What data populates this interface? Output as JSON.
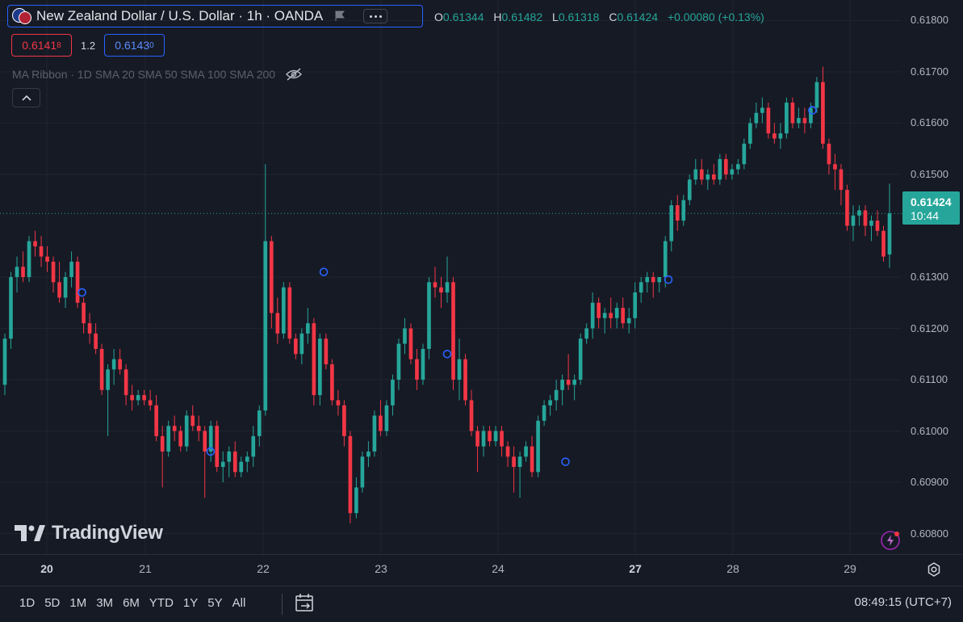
{
  "header": {
    "symbol_title": "New Zealand Dollar / U.S. Dollar · 1h · OANDA",
    "ohlc": {
      "o_label": "O",
      "o": "0.61344",
      "h_label": "H",
      "h": "0.61482",
      "l_label": "L",
      "l": "0.61318",
      "c_label": "C",
      "c": "0.61424",
      "change": "+0.00080 (+0.13%)"
    },
    "bid": {
      "main": "0.6141",
      "small": "8"
    },
    "spread": "1.2",
    "ask": {
      "main": "0.6143",
      "small": "0"
    },
    "indicator": "MA Ribbon · 1D SMA 20 SMA 50 SMA 100 SMA 200"
  },
  "logo_text": "TradingView",
  "price_scale": {
    "labels": [
      "0.61800",
      "0.61700",
      "0.61600",
      "0.61500",
      "0.61300",
      "0.61200",
      "0.61100",
      "0.61000",
      "0.60900",
      "0.60800"
    ],
    "last_price": "0.61424",
    "countdown": "10:44"
  },
  "time_axis": {
    "labels": [
      {
        "text": "20",
        "bold": true
      },
      {
        "text": "21",
        "bold": false
      },
      {
        "text": "22",
        "bold": false
      },
      {
        "text": "23",
        "bold": false
      },
      {
        "text": "24",
        "bold": false
      },
      {
        "text": "27",
        "bold": true
      },
      {
        "text": "28",
        "bold": false
      },
      {
        "text": "29",
        "bold": false
      }
    ]
  },
  "bottom_bar": {
    "ranges": [
      "1D",
      "5D",
      "1M",
      "3M",
      "6M",
      "YTD",
      "1Y",
      "5Y",
      "All"
    ],
    "clock": "08:49:15 (UTC+7)"
  },
  "colors": {
    "up": "#26a69a",
    "down": "#f23645",
    "background": "#161a25",
    "grid": "#202430",
    "marker": "#2962ff"
  },
  "chart_data": {
    "type": "candlestick",
    "symbol": "NZD/USD",
    "interval": "1h",
    "ylim": [
      0.6076,
      0.6184
    ],
    "last": 0.61424,
    "candles": [
      [
        0.6109,
        0.6119,
        0.6107,
        0.6118
      ],
      [
        0.6118,
        0.6131,
        0.6116,
        0.613
      ],
      [
        0.613,
        0.6134,
        0.6127,
        0.6132
      ],
      [
        0.6132,
        0.6135,
        0.6129,
        0.613
      ],
      [
        0.613,
        0.6138,
        0.6129,
        0.6137
      ],
      [
        0.6137,
        0.6139,
        0.6134,
        0.6136
      ],
      [
        0.6136,
        0.6138,
        0.6132,
        0.6134
      ],
      [
        0.6134,
        0.6136,
        0.6131,
        0.6133
      ],
      [
        0.6133,
        0.6134,
        0.6127,
        0.6129
      ],
      [
        0.6129,
        0.6133,
        0.6125,
        0.6126
      ],
      [
        0.6126,
        0.6131,
        0.6124,
        0.613
      ],
      [
        0.613,
        0.6135,
        0.6128,
        0.6133
      ],
      [
        0.6133,
        0.6134,
        0.6124,
        0.6125
      ],
      [
        0.6125,
        0.6126,
        0.6119,
        0.6121
      ],
      [
        0.6121,
        0.6123,
        0.6117,
        0.6119
      ],
      [
        0.6119,
        0.6121,
        0.6115,
        0.6116
      ],
      [
        0.6116,
        0.6117,
        0.6107,
        0.6108
      ],
      [
        0.6108,
        0.6113,
        0.6099,
        0.6112
      ],
      [
        0.6112,
        0.6116,
        0.6109,
        0.6114
      ],
      [
        0.6114,
        0.6116,
        0.6111,
        0.6112
      ],
      [
        0.6112,
        0.6113,
        0.6105,
        0.6107
      ],
      [
        0.6107,
        0.6109,
        0.6104,
        0.6106
      ],
      [
        0.6106,
        0.6108,
        0.6105,
        0.6107
      ],
      [
        0.6107,
        0.6108,
        0.6105,
        0.6106
      ],
      [
        0.6106,
        0.6108,
        0.6104,
        0.6105
      ],
      [
        0.6105,
        0.6107,
        0.6098,
        0.6099
      ],
      [
        0.6099,
        0.6101,
        0.6089,
        0.6096
      ],
      [
        0.6096,
        0.6102,
        0.6095,
        0.6101
      ],
      [
        0.6101,
        0.6103,
        0.6098,
        0.61
      ],
      [
        0.61,
        0.6101,
        0.6096,
        0.6097
      ],
      [
        0.6097,
        0.6104,
        0.6096,
        0.6103
      ],
      [
        0.6103,
        0.6105,
        0.61,
        0.6101
      ],
      [
        0.6101,
        0.6103,
        0.6098,
        0.61
      ],
      [
        0.61,
        0.6101,
        0.6087,
        0.6096
      ],
      [
        0.6096,
        0.6102,
        0.6094,
        0.6101
      ],
      [
        0.6101,
        0.6102,
        0.6092,
        0.6093
      ],
      [
        0.6093,
        0.6096,
        0.609,
        0.6094
      ],
      [
        0.6094,
        0.6097,
        0.6091,
        0.6096
      ],
      [
        0.6096,
        0.6098,
        0.6091,
        0.6092
      ],
      [
        0.6092,
        0.6095,
        0.6091,
        0.6094
      ],
      [
        0.6094,
        0.6096,
        0.6092,
        0.6095
      ],
      [
        0.6095,
        0.6101,
        0.6093,
        0.6099
      ],
      [
        0.6099,
        0.6105,
        0.6097,
        0.6104
      ],
      [
        0.6104,
        0.6152,
        0.6103,
        0.6137
      ],
      [
        0.6137,
        0.6138,
        0.612,
        0.6123
      ],
      [
        0.6123,
        0.6126,
        0.6117,
        0.6119
      ],
      [
        0.6119,
        0.6129,
        0.6118,
        0.6128
      ],
      [
        0.6128,
        0.6129,
        0.6117,
        0.6118
      ],
      [
        0.6118,
        0.6119,
        0.6114,
        0.6115
      ],
      [
        0.6115,
        0.612,
        0.6113,
        0.6119
      ],
      [
        0.6119,
        0.6124,
        0.6117,
        0.6121
      ],
      [
        0.6121,
        0.6122,
        0.6105,
        0.6107
      ],
      [
        0.6107,
        0.6119,
        0.6105,
        0.6118
      ],
      [
        0.6118,
        0.6119,
        0.6112,
        0.6113
      ],
      [
        0.6113,
        0.6114,
        0.6105,
        0.6106
      ],
      [
        0.6106,
        0.6108,
        0.6103,
        0.6105
      ],
      [
        0.6105,
        0.6106,
        0.6097,
        0.6099
      ],
      [
        0.6099,
        0.61,
        0.6082,
        0.6084
      ],
      [
        0.6084,
        0.6091,
        0.6083,
        0.6089
      ],
      [
        0.6089,
        0.6096,
        0.6088,
        0.6095
      ],
      [
        0.6095,
        0.6098,
        0.6093,
        0.6096
      ],
      [
        0.6096,
        0.6104,
        0.6095,
        0.6103
      ],
      [
        0.6103,
        0.6106,
        0.6099,
        0.61
      ],
      [
        0.61,
        0.6106,
        0.6099,
        0.6105
      ],
      [
        0.6105,
        0.6111,
        0.6103,
        0.611
      ],
      [
        0.611,
        0.6118,
        0.6108,
        0.6117
      ],
      [
        0.6117,
        0.6122,
        0.6115,
        0.612
      ],
      [
        0.612,
        0.6121,
        0.6113,
        0.6114
      ],
      [
        0.6114,
        0.6116,
        0.6108,
        0.611
      ],
      [
        0.611,
        0.6117,
        0.6109,
        0.6116
      ],
      [
        0.6116,
        0.613,
        0.6114,
        0.6129
      ],
      [
        0.6129,
        0.6132,
        0.6126,
        0.6128
      ],
      [
        0.6128,
        0.613,
        0.6124,
        0.6127
      ],
      [
        0.6127,
        0.6134,
        0.6125,
        0.6129
      ],
      [
        0.6129,
        0.613,
        0.6108,
        0.611
      ],
      [
        0.611,
        0.6118,
        0.6106,
        0.6114
      ],
      [
        0.6114,
        0.6115,
        0.6105,
        0.6106
      ],
      [
        0.6106,
        0.6108,
        0.6099,
        0.61
      ],
      [
        0.61,
        0.6101,
        0.6092,
        0.6097
      ],
      [
        0.6097,
        0.6101,
        0.6095,
        0.61
      ],
      [
        0.61,
        0.6101,
        0.6097,
        0.6098
      ],
      [
        0.6098,
        0.6101,
        0.6097,
        0.61
      ],
      [
        0.61,
        0.6101,
        0.6095,
        0.6097
      ],
      [
        0.6097,
        0.6098,
        0.6093,
        0.6095
      ],
      [
        0.6095,
        0.6097,
        0.6088,
        0.6093
      ],
      [
        0.6093,
        0.6096,
        0.6087,
        0.6095
      ],
      [
        0.6095,
        0.6098,
        0.6094,
        0.6097
      ],
      [
        0.6097,
        0.6099,
        0.6091,
        0.6092
      ],
      [
        0.6092,
        0.6103,
        0.6091,
        0.6102
      ],
      [
        0.6102,
        0.6106,
        0.6101,
        0.6105
      ],
      [
        0.6105,
        0.6107,
        0.6103,
        0.6106
      ],
      [
        0.6106,
        0.611,
        0.6104,
        0.6108
      ],
      [
        0.6108,
        0.6111,
        0.6105,
        0.611
      ],
      [
        0.611,
        0.6115,
        0.6108,
        0.6109
      ],
      [
        0.6109,
        0.6111,
        0.6106,
        0.611
      ],
      [
        0.611,
        0.6119,
        0.6109,
        0.6118
      ],
      [
        0.6118,
        0.6121,
        0.6117,
        0.612
      ],
      [
        0.612,
        0.6127,
        0.6118,
        0.6125
      ],
      [
        0.6125,
        0.6126,
        0.612,
        0.6122
      ],
      [
        0.6122,
        0.6124,
        0.6119,
        0.6123
      ],
      [
        0.6123,
        0.6126,
        0.612,
        0.6122
      ],
      [
        0.6122,
        0.6125,
        0.612,
        0.6124
      ],
      [
        0.6124,
        0.6126,
        0.612,
        0.6121
      ],
      [
        0.6121,
        0.6124,
        0.6119,
        0.6122
      ],
      [
        0.6122,
        0.6129,
        0.612,
        0.6127
      ],
      [
        0.6127,
        0.613,
        0.6125,
        0.6129
      ],
      [
        0.6129,
        0.6131,
        0.6127,
        0.613
      ],
      [
        0.613,
        0.6131,
        0.6126,
        0.6129
      ],
      [
        0.6129,
        0.613,
        0.6127,
        0.613
      ],
      [
        0.613,
        0.6138,
        0.6128,
        0.6137
      ],
      [
        0.6137,
        0.6145,
        0.6135,
        0.6144
      ],
      [
        0.6144,
        0.6146,
        0.6139,
        0.6141
      ],
      [
        0.6141,
        0.6146,
        0.614,
        0.6145
      ],
      [
        0.6145,
        0.615,
        0.6144,
        0.6149
      ],
      [
        0.6149,
        0.6153,
        0.6148,
        0.6151
      ],
      [
        0.6151,
        0.6153,
        0.6148,
        0.6149
      ],
      [
        0.6149,
        0.6151,
        0.6147,
        0.615
      ],
      [
        0.615,
        0.6152,
        0.6148,
        0.6149
      ],
      [
        0.6149,
        0.6154,
        0.6148,
        0.6153
      ],
      [
        0.6153,
        0.6154,
        0.6149,
        0.615
      ],
      [
        0.615,
        0.6152,
        0.6149,
        0.6151
      ],
      [
        0.6151,
        0.6153,
        0.615,
        0.6152
      ],
      [
        0.6152,
        0.6157,
        0.6151,
        0.6156
      ],
      [
        0.6156,
        0.6161,
        0.6155,
        0.616
      ],
      [
        0.616,
        0.6164,
        0.6159,
        0.6162
      ],
      [
        0.6162,
        0.6165,
        0.616,
        0.6163
      ],
      [
        0.6163,
        0.6164,
        0.6157,
        0.6158
      ],
      [
        0.6158,
        0.616,
        0.6156,
        0.6157
      ],
      [
        0.6157,
        0.616,
        0.6155,
        0.6158
      ],
      [
        0.6158,
        0.6165,
        0.6157,
        0.6164
      ],
      [
        0.6164,
        0.6165,
        0.6159,
        0.616
      ],
      [
        0.616,
        0.6163,
        0.6159,
        0.6161
      ],
      [
        0.6161,
        0.6163,
        0.6158,
        0.616
      ],
      [
        0.616,
        0.6164,
        0.6159,
        0.6163
      ],
      [
        0.6163,
        0.6169,
        0.6162,
        0.6168
      ],
      [
        0.6168,
        0.6171,
        0.6155,
        0.6156
      ],
      [
        0.6156,
        0.6157,
        0.615,
        0.6152
      ],
      [
        0.6152,
        0.6154,
        0.6147,
        0.6151
      ],
      [
        0.6151,
        0.6152,
        0.6144,
        0.6147
      ],
      [
        0.6147,
        0.6148,
        0.6139,
        0.614
      ],
      [
        0.614,
        0.6144,
        0.6137,
        0.6142
      ],
      [
        0.6142,
        0.6144,
        0.614,
        0.6143
      ],
      [
        0.6143,
        0.6144,
        0.6138,
        0.614
      ],
      [
        0.614,
        0.6142,
        0.6137,
        0.6141
      ],
      [
        0.6141,
        0.6143,
        0.6138,
        0.6139
      ],
      [
        0.6139,
        0.614,
        0.6133,
        0.6134
      ],
      [
        0.61344,
        0.61482,
        0.61318,
        0.61424
      ]
    ],
    "markers": [
      0.6127,
      0.6096,
      0.6131,
      0.6115,
      0.6094,
      0.61295,
      0.61625
    ]
  }
}
